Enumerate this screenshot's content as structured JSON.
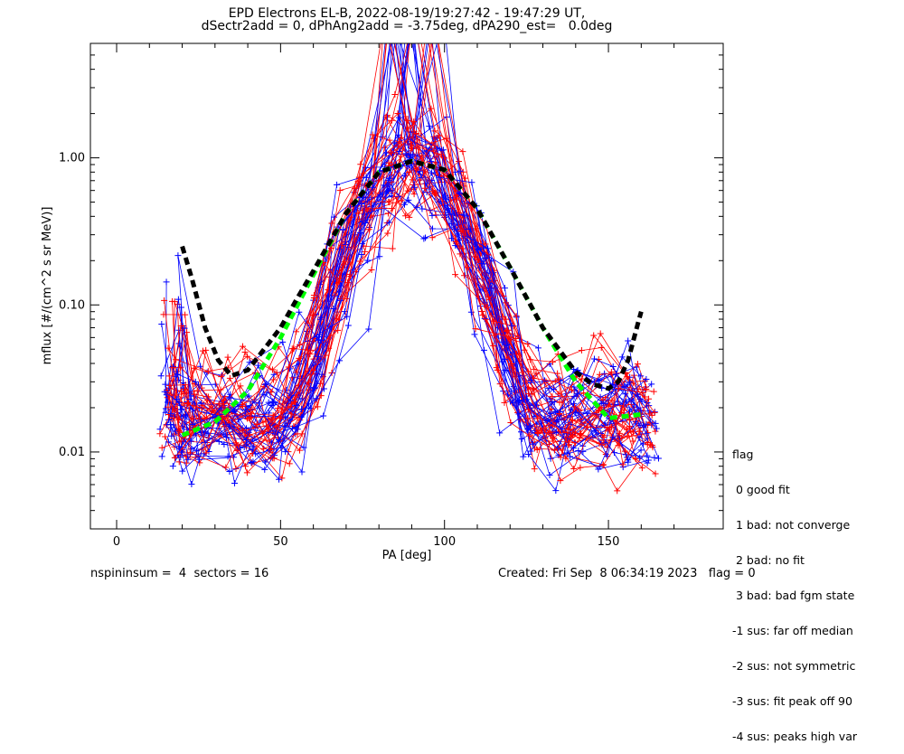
{
  "window": {
    "title_line1": "EPD Electrons EL-B, 2022-08-19/19:27:42 - 19:47:29 UT,",
    "title_line2": "dSectr2add = 0, dPhAng2add = -3.75deg, dPA290_est=   0.0deg"
  },
  "chart_data": {
    "type": "line",
    "title": "EPD Electrons EL-B, 2022-08-19/19:27:42 - 19:47:29 UT,",
    "subtitle": "dSectr2add = 0, dPhAng2add = -3.75deg, dPA290_est=   0.0deg",
    "xlabel": "PA [deg]",
    "ylabel": "mflux [#/(cm^2 s sr MeV)]",
    "xlim": [
      -8,
      185
    ],
    "ylim": [
      0.003,
      6.0
    ],
    "yscale": "log",
    "x_ticks": [
      0,
      50,
      100,
      150
    ],
    "x_tick_labels": [
      "0",
      "50",
      "100",
      "150"
    ],
    "y_ticks": [
      0.01,
      0.1,
      1.0
    ],
    "y_tick_labels": [
      "0.01",
      "0.10",
      "1.00"
    ],
    "grid": false,
    "series": [
      {
        "color": "#00ff00",
        "style": "dashed-thick",
        "x": [
          20,
          30,
          40,
          50,
          60,
          70,
          80,
          90,
          100,
          110,
          120,
          130,
          140,
          150,
          160
        ],
        "y": [
          0.013,
          0.016,
          0.026,
          0.06,
          0.16,
          0.42,
          0.8,
          0.95,
          0.83,
          0.45,
          0.18,
          0.07,
          0.03,
          0.017,
          0.018
        ]
      },
      {
        "color": "#000000",
        "style": "dashed-thick",
        "x": [
          20,
          23,
          27,
          31,
          35,
          40,
          45,
          50,
          55,
          60,
          70,
          80,
          90,
          100,
          110,
          120,
          130,
          140,
          145,
          150,
          153,
          156,
          159,
          160
        ],
        "y": [
          0.25,
          0.15,
          0.07,
          0.042,
          0.033,
          0.036,
          0.05,
          0.07,
          0.11,
          0.17,
          0.42,
          0.8,
          0.95,
          0.83,
          0.45,
          0.18,
          0.07,
          0.035,
          0.029,
          0.027,
          0.03,
          0.042,
          0.075,
          0.09
        ]
      }
    ]
  },
  "legend": {
    "title": "flag",
    "items": [
      " 0 good fit",
      " 1 bad: not converge",
      " 2 bad: no fit",
      " 3 bad: bad fgm state",
      "-1 sus: far off median",
      "-2 sus: not symmetric",
      "-3 sus: fit peak off 90",
      "-4 sus: peaks high var"
    ]
  },
  "footer": {
    "left": "nspininsum =  4  sectors = 16",
    "right": "Created: Fri Sep  8 06:34:19 2023   flag = 0"
  },
  "colors": {
    "red_series": "#ff0000",
    "blue_series": "#0000ff",
    "fit_green": "#00ff00",
    "fit_black": "#000000"
  }
}
